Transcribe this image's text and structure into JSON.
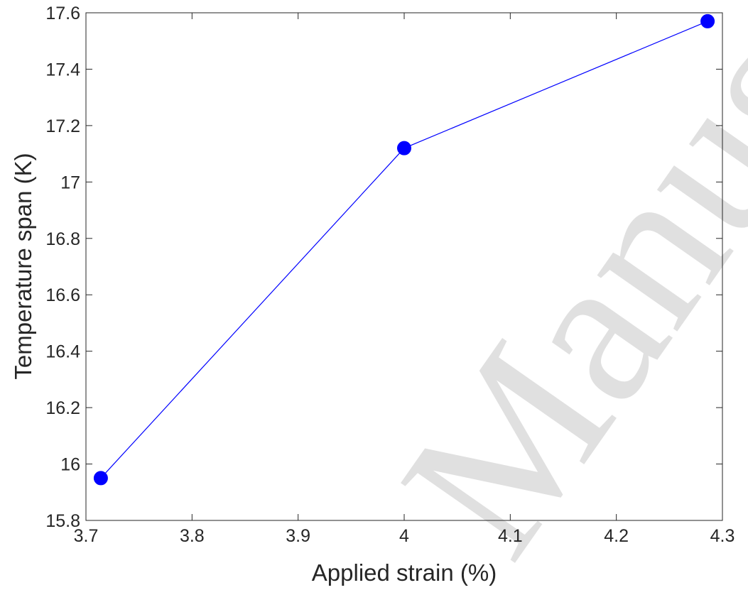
{
  "chart_data": {
    "type": "line",
    "xlabel": "Applied strain (%)",
    "ylabel": "Temperature span (K)",
    "xlim": [
      3.7,
      4.3
    ],
    "ylim": [
      15.8,
      17.6
    ],
    "xticks": [
      "3.7",
      "3.8",
      "3.9",
      "4",
      "4.1",
      "4.2",
      "4.3"
    ],
    "yticks": [
      "15.8",
      "16",
      "16.2",
      "16.4",
      "16.6",
      "16.8",
      "17",
      "17.2",
      "17.4",
      "17.6"
    ],
    "grid": false,
    "series": [
      {
        "color": "#0000ff",
        "marker": "circle",
        "x": [
          3.714,
          4.0,
          4.286
        ],
        "y": [
          15.95,
          17.12,
          17.57
        ]
      }
    ]
  },
  "watermark": {
    "text": "Manuscript"
  }
}
